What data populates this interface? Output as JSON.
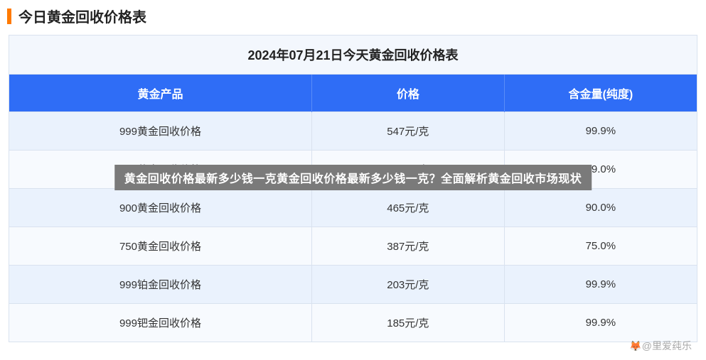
{
  "header": {
    "title": "今日黄金回收价格表",
    "accent_color": "#ff7a00"
  },
  "table": {
    "caption": "2024年07月21日今天黄金回收价格表",
    "columns": [
      "黄金产品",
      "价格",
      "含金量(纯度)"
    ],
    "header_bg": "#2f6df6",
    "header_text_color": "#ffffff",
    "row_alt_bg_1": "#eaf2fd",
    "row_alt_bg_2": "#f7fafe",
    "border_color": "#d9e2ef",
    "rows": [
      {
        "product": "999黄金回收价格",
        "price": "547元/克",
        "purity": "99.9%"
      },
      {
        "product": "990黄金回收价格",
        "price": "541元/克",
        "purity": "99.0%"
      },
      {
        "product": "900黄金回收价格",
        "price": "465元/克",
        "purity": "90.0%"
      },
      {
        "product": "750黄金回收价格",
        "price": "387元/克",
        "purity": "75.0%"
      },
      {
        "product": "999铂金回收价格",
        "price": "203元/克",
        "purity": "99.9%"
      },
      {
        "product": "999钯金回收价格",
        "price": "185元/克",
        "purity": "99.9%"
      }
    ]
  },
  "overlay": {
    "text": "黄金回收价格最新多少钱一克黄金回收价格最新多少钱一克？全面解析黄金回收市场现状",
    "bg": "#7a7a7a"
  },
  "watermark": {
    "text": "🦊@里爱莼乐"
  }
}
